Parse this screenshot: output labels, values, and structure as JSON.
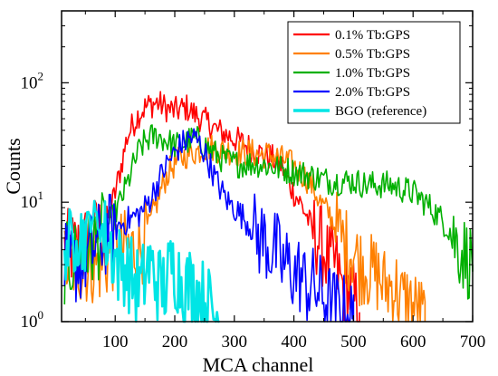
{
  "chart_data": {
    "type": "line",
    "title": "",
    "xlabel": "MCA channel",
    "ylabel": "Counts",
    "xlim": [
      10,
      700
    ],
    "ylim": [
      1,
      400
    ],
    "yscale": "log",
    "grid": false,
    "legend_position": "top-right",
    "x_ticks": [
      100,
      200,
      300,
      400,
      500,
      600,
      700
    ],
    "x_tick_labels": [
      "100",
      "200",
      "300",
      "400",
      "500",
      "600",
      "700"
    ],
    "y_ticks": [
      1,
      10,
      100
    ],
    "y_tick_labels": [
      "10",
      "10",
      "10"
    ],
    "y_tick_exponents": [
      "0",
      "1",
      "2"
    ],
    "series": [
      {
        "name": "0.1% Tb:GPS",
        "color": "#ff0000",
        "x": [
          15,
          40,
          60,
          80,
          90,
          100,
          110,
          120,
          130,
          140,
          150,
          160,
          170,
          180,
          190,
          200,
          210,
          220,
          230,
          240,
          250,
          260,
          270,
          280,
          290,
          300,
          310,
          320,
          330,
          340,
          350,
          360,
          370,
          380,
          390,
          400,
          410,
          420,
          430,
          440,
          450,
          460,
          470,
          480,
          490,
          500,
          510
        ],
        "y": [
          4,
          4,
          5,
          6,
          8,
          12,
          20,
          35,
          45,
          55,
          62,
          66,
          68,
          64,
          60,
          58,
          60,
          62,
          56,
          52,
          48,
          45,
          40,
          38,
          36,
          34,
          32,
          30,
          28,
          26,
          25,
          24,
          22,
          20,
          15,
          12,
          10,
          8,
          6,
          5,
          4,
          3,
          3,
          2,
          2,
          1.5,
          1.2
        ]
      },
      {
        "name": "0.5% Tb:GPS",
        "color": "#ff8000",
        "x": [
          15,
          40,
          60,
          80,
          100,
          120,
          140,
          150,
          160,
          170,
          180,
          190,
          200,
          210,
          220,
          230,
          240,
          250,
          260,
          270,
          280,
          290,
          300,
          310,
          320,
          330,
          340,
          350,
          360,
          370,
          380,
          390,
          400,
          410,
          420,
          430,
          440,
          450,
          460,
          470,
          480,
          490,
          500,
          510,
          520,
          530,
          540,
          550,
          560,
          570,
          580,
          590,
          600,
          610,
          620
        ],
        "y": [
          3,
          3,
          3,
          3,
          4,
          4,
          4,
          5,
          7,
          10,
          14,
          18,
          21,
          23,
          25,
          26,
          27,
          28,
          29,
          28,
          27,
          27,
          26,
          26,
          26,
          26,
          25,
          25,
          25,
          24,
          23,
          22,
          20,
          18,
          16,
          14,
          11,
          9,
          8,
          6,
          5,
          4,
          4,
          3,
          3,
          2.5,
          2.5,
          2,
          2,
          2,
          1.5,
          1.5,
          1.3,
          1.2,
          1
        ]
      },
      {
        "name": "1.0% Tb:GPS",
        "color": "#00b000",
        "x": [
          15,
          60,
          100,
          120,
          130,
          140,
          150,
          160,
          170,
          180,
          190,
          200,
          210,
          220,
          230,
          240,
          250,
          260,
          270,
          280,
          290,
          300,
          320,
          340,
          360,
          380,
          400,
          420,
          440,
          460,
          480,
          500,
          520,
          540,
          560,
          580,
          600,
          620,
          640,
          660,
          680,
          700
        ],
        "y": [
          3,
          4,
          8,
          14,
          20,
          27,
          32,
          35,
          36,
          34,
          32,
          30,
          30,
          32,
          34,
          33,
          30,
          27,
          25,
          23,
          22,
          21,
          21,
          21,
          20,
          19,
          18,
          17,
          16,
          15,
          15,
          15,
          14,
          14,
          14,
          13,
          12,
          10,
          8,
          6,
          4,
          3
        ]
      },
      {
        "name": "2.0% Tb:GPS",
        "color": "#0000ff",
        "x": [
          15,
          40,
          60,
          80,
          100,
          120,
          140,
          150,
          160,
          170,
          180,
          190,
          200,
          210,
          220,
          230,
          240,
          250,
          260,
          270,
          280,
          290,
          300,
          310,
          320,
          330,
          340,
          350,
          360,
          370,
          380,
          390,
          400,
          410,
          420,
          430,
          440,
          450,
          460,
          470,
          480,
          490,
          500
        ],
        "y": [
          3,
          3,
          4,
          5,
          6,
          7,
          8,
          9,
          11,
          14,
          18,
          22,
          26,
          30,
          33,
          35,
          32,
          26,
          20,
          15,
          12,
          10,
          9,
          8,
          7,
          6,
          5,
          5,
          4,
          4,
          3,
          3,
          2.5,
          2.5,
          2,
          2,
          1.8,
          1.6,
          1.4,
          1.3,
          1.2,
          1.1,
          1
        ]
      },
      {
        "name": "BGO (reference)",
        "color": "#00e5e5",
        "x": [
          15,
          25,
          35,
          45,
          55,
          65,
          75,
          85,
          95,
          105,
          115,
          125,
          135,
          145,
          155,
          165,
          175,
          185,
          195,
          205,
          215,
          225,
          235,
          245,
          255,
          265,
          275
        ],
        "y": [
          5,
          4,
          6,
          5,
          7,
          8,
          6,
          5,
          4,
          3,
          3,
          2.5,
          2,
          2,
          3,
          2.5,
          2,
          2,
          3,
          2.5,
          2,
          2,
          1.8,
          1.6,
          1.4,
          1.2,
          1
        ]
      }
    ]
  }
}
